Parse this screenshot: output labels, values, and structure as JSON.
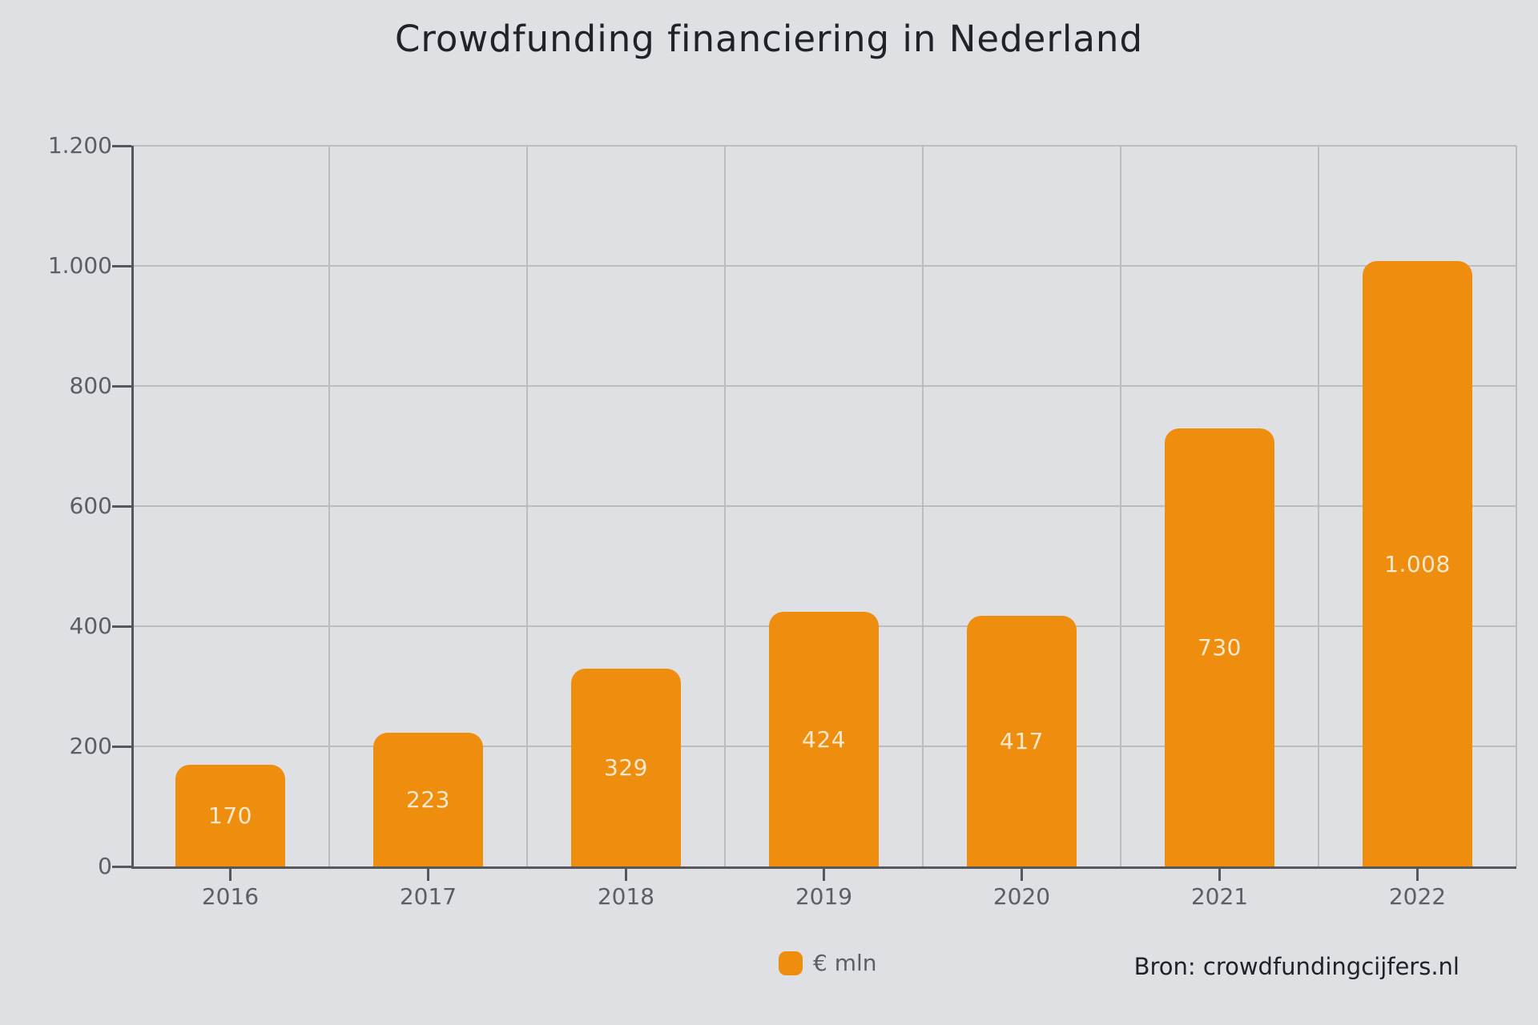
{
  "title": "Crowdfunding financiering in Nederland",
  "chart_data": {
    "type": "bar",
    "title": "Crowdfunding financiering in Nederland",
    "categories": [
      "2016",
      "2017",
      "2018",
      "2019",
      "2020",
      "2021",
      "2022"
    ],
    "values": [
      170,
      223,
      329,
      424,
      417,
      730,
      1008
    ],
    "bar_labels": [
      "170",
      "223",
      "329",
      "424",
      "417",
      "730",
      "1.008"
    ],
    "series_name": "€ mln",
    "xlabel": "",
    "ylabel": "",
    "ylim": [
      0,
      1200
    ],
    "yticks": [
      0,
      200,
      400,
      600,
      800,
      1000,
      1200
    ],
    "ytick_labels": [
      "0",
      "200",
      "400",
      "600",
      "800",
      "1.000",
      "1.200"
    ],
    "grid": true,
    "legend_position": "bottom",
    "value_labels_inside_bars": true
  },
  "legend": {
    "swatch_color": "#EE8D0E",
    "label": "€ mln"
  },
  "source": "Bron: crowdfundingcijfers.nl",
  "colors": {
    "background": "#dfe0e4",
    "bar": "#EE8D0E",
    "grid": "#bcbdc1",
    "axis": "#55575c",
    "tick_text": "#5b5e66",
    "title_text": "#212227",
    "bar_label_text": "#FFF2E2"
  }
}
